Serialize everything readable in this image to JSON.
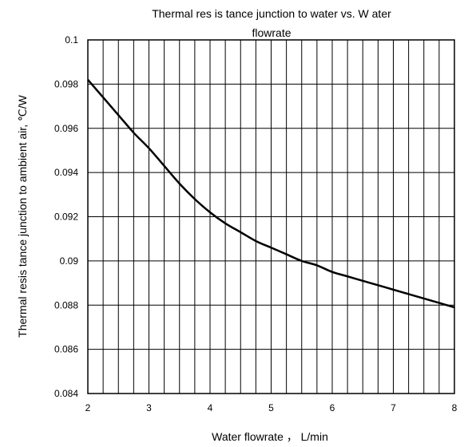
{
  "chart_data": {
    "type": "line",
    "title_line1": "Thermal res is tance junction  to water vs. W ater",
    "title_line2": "flowrate",
    "xlabel": "Water flowrate  ，  L/min",
    "ylabel": "Thermal resis tance junction to ambient air,  ℃/W",
    "xlim": [
      2,
      8
    ],
    "ylim": [
      0.084,
      0.1
    ],
    "x_ticks": [
      2,
      3,
      4,
      5,
      6,
      7,
      8
    ],
    "x_tick_labels": [
      "2",
      "3",
      "4",
      "5",
      "6",
      "7",
      "8"
    ],
    "y_ticks": [
      0.084,
      0.086,
      0.088,
      0.09,
      0.092,
      0.094,
      0.096,
      0.098,
      0.1
    ],
    "y_tick_labels": [
      "0.084",
      "0.086",
      "0.088",
      "0.09",
      "0.092",
      "0.094",
      "0.096",
      "0.098",
      "0.1"
    ],
    "x_minor_step": 0.25,
    "grid": true,
    "legend": "none",
    "line_color": "#000000",
    "series": [
      {
        "x": [
          2.0,
          2.25,
          2.5,
          2.75,
          3.0,
          3.25,
          3.5,
          3.75,
          4.0,
          4.25,
          4.5,
          4.75,
          5.0,
          5.25,
          5.5,
          5.75,
          6.0,
          6.25,
          6.5,
          6.75,
          7.0,
          7.25,
          7.5,
          7.75,
          8.0
        ],
        "values": [
          0.0982,
          0.0974,
          0.0966,
          0.0958,
          0.0951,
          0.0943,
          0.0935,
          0.0928,
          0.0922,
          0.0917,
          0.0913,
          0.0909,
          0.0906,
          0.0903,
          0.09,
          0.0898,
          0.0895,
          0.0893,
          0.0891,
          0.0889,
          0.0887,
          0.0885,
          0.0883,
          0.0881,
          0.0879
        ]
      }
    ]
  }
}
